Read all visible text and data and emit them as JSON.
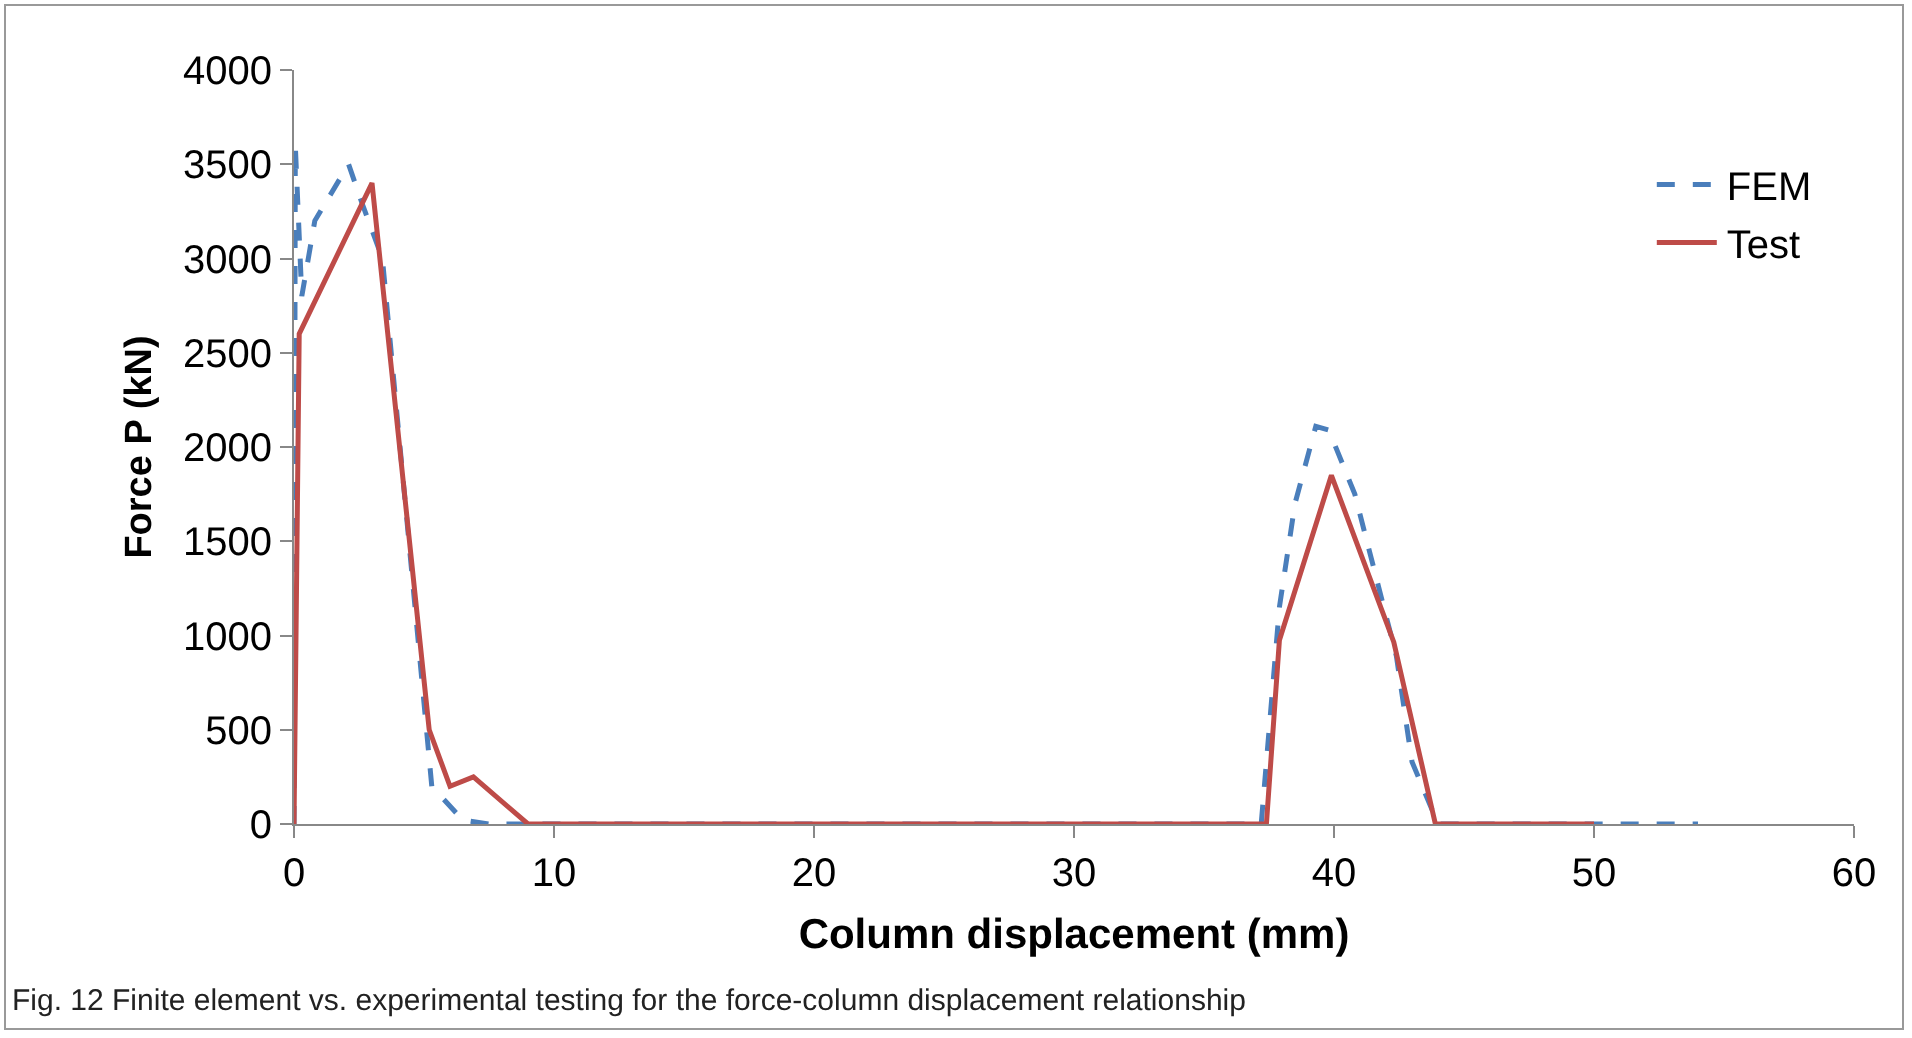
{
  "chart_data": {
    "type": "line",
    "xlabel": "Column displacement (mm)",
    "ylabel": "Force P (kN)",
    "xlim": [
      0,
      60
    ],
    "xticks": [
      0,
      10,
      20,
      30,
      40,
      50,
      60
    ],
    "ylim": [
      0,
      4000
    ],
    "yticks": [
      0,
      500,
      1000,
      1500,
      2000,
      2500,
      3000,
      3500,
      4000
    ],
    "grid": false,
    "legend": "top right",
    "marker": "none",
    "annotations": [
      "Fig. 12 Finite element vs. experimental testing for the force-column displacement relationship"
    ],
    "series": [
      {
        "name": "FEM",
        "color": "#4a7ebb",
        "line_style": "dashed",
        "x": [
          0,
          0.05,
          0.3,
          0.8,
          2.1,
          2.6,
          3.4,
          5.3,
          6.5,
          7.5,
          37.2,
          37.9,
          38.5,
          39.3,
          39.8,
          40.8,
          42.4,
          43,
          44,
          54
        ],
        "values": [
          0,
          3600,
          2800,
          3200,
          3500,
          3300,
          3000,
          200,
          20,
          0,
          0,
          1150,
          1700,
          2110,
          2090,
          1750,
          890,
          330,
          0,
          0
        ]
      },
      {
        "name": "Test",
        "color": "#be4b48",
        "line_style": "solid",
        "x": [
          0,
          0.2,
          3,
          5.2,
          6,
          6.9,
          9,
          37.4,
          37.9,
          39.9,
          42.3,
          43.9,
          50
        ],
        "values": [
          0,
          2600,
          3400,
          500,
          200,
          250,
          0,
          0,
          975,
          1850,
          965,
          0,
          0
        ]
      }
    ]
  }
}
